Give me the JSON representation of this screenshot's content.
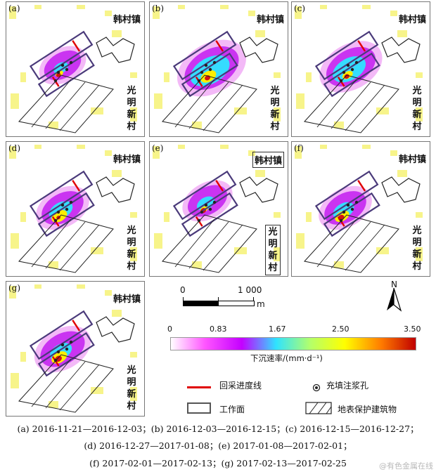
{
  "panels": [
    {
      "id": "a",
      "label": "(a)",
      "town": "韩村镇",
      "village": "光明新村",
      "boxed": false
    },
    {
      "id": "b",
      "label": "(b)",
      "town": "韩村镇",
      "village": "光明新村",
      "boxed": false
    },
    {
      "id": "c",
      "label": "(c)",
      "town": "韩村镇",
      "village": "光明新村",
      "boxed": false
    },
    {
      "id": "d",
      "label": "(d)",
      "town": "韩村镇",
      "village": "光明新村",
      "boxed": false
    },
    {
      "id": "e",
      "label": "(e)",
      "town": "韩村镇",
      "village": "光明新村",
      "boxed": true
    },
    {
      "id": "f",
      "label": "(f)",
      "town": "韩村镇",
      "village": "光明新村",
      "boxed": false
    },
    {
      "id": "g",
      "label": "(g)",
      "town": "韩村镇",
      "village": "光明新村",
      "boxed": false
    }
  ],
  "scale_bar": {
    "start": "0",
    "end": "1 000",
    "unit": "m"
  },
  "north_arrow": "N",
  "colorbar": {
    "ticks": [
      "0",
      "0.83",
      "1.67",
      "2.50",
      "3.50"
    ],
    "title": "下沉速率/(mm·d⁻¹)",
    "colors": [
      "#ffffff",
      "#ff55ff",
      "#c400ff",
      "#2fe3ff",
      "#b4ff6a",
      "#ffff00",
      "#ff7b00",
      "#c00000"
    ]
  },
  "legend": {
    "mining_line": "回采进度线",
    "grout_hole": "充填注浆孔",
    "working_face": "工作面",
    "protected_building": "地表保护建筑物",
    "mining_line_color": "#e00000"
  },
  "captions": [
    "(a) 2016-11-21—2016-12-03；(b) 2016-12-03—2016-12-15；(c) 2016-12-15—2016-12-27；",
    "(d) 2016-12-27—2017-01-08；(e) 2017-01-08—2017-02-01；",
    "(f) 2017-02-01—2017-02-13；(g) 2017-02-13—2017-02-25"
  ],
  "watermark": "@有色金属在线"
}
